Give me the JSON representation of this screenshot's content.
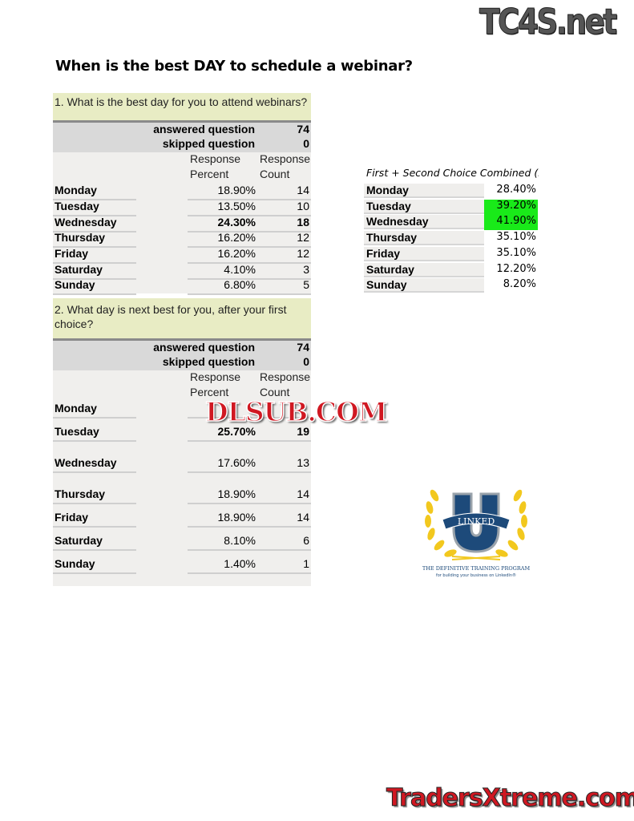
{
  "title": "When is the best DAY to schedule a webinar?",
  "watermarks": {
    "top": "TC4S.net",
    "middle": "DLSUB.COM",
    "bottom": "TradersXtreme.com"
  },
  "q1": {
    "question": "1. What is the best day for you to attend webinars?",
    "answered_label": "answered question",
    "answered": "74",
    "skipped_label": "skipped question",
    "skipped": "0",
    "col_percent": "Response Percent",
    "col_count": "Response Count",
    "rows": [
      {
        "day": "Monday",
        "percent": "18.90%",
        "count": "14"
      },
      {
        "day": "Tuesday",
        "percent": "13.50%",
        "count": "10"
      },
      {
        "day": "Wednesday",
        "percent": "24.30%",
        "count": "18"
      },
      {
        "day": "Thursday",
        "percent": "16.20%",
        "count": "12"
      },
      {
        "day": "Friday",
        "percent": "16.20%",
        "count": "12"
      },
      {
        "day": "Saturday",
        "percent": "4.10%",
        "count": "3"
      },
      {
        "day": "Sunday",
        "percent": "6.80%",
        "count": "5"
      }
    ]
  },
  "q2": {
    "question": "2. What day is next best for you, after your first choice?",
    "answered_label": "answered question",
    "answered": "74",
    "skipped_label": "skipped question",
    "skipped": "0",
    "col_percent": "Response Percent",
    "col_count": "Response Count",
    "rows": [
      {
        "day": "Monday",
        "percent": "",
        "count": ""
      },
      {
        "day": "Tuesday",
        "percent": "25.70%",
        "count": "19"
      },
      {
        "day": "Wednesday",
        "percent": "17.60%",
        "count": "13"
      },
      {
        "day": "Thursday",
        "percent": "18.90%",
        "count": "14"
      },
      {
        "day": "Friday",
        "percent": "18.90%",
        "count": "14"
      },
      {
        "day": "Saturday",
        "percent": "8.10%",
        "count": "6"
      },
      {
        "day": "Sunday",
        "percent": "1.40%",
        "count": "1"
      }
    ]
  },
  "combined": {
    "title": "First + Second Choice Combined (DAY)",
    "highlight_color": "#19ea19",
    "rows": [
      {
        "day": "Monday",
        "percent": "28.40%"
      },
      {
        "day": "Tuesday",
        "percent": "39.20%",
        "highlight": true
      },
      {
        "day": "Wednesday",
        "percent": "41.90%",
        "highlight": true
      },
      {
        "day": "Thursday",
        "percent": "35.10%"
      },
      {
        "day": "Friday",
        "percent": "35.10%"
      },
      {
        "day": "Saturday",
        "percent": "12.20%"
      },
      {
        "day": "Sunday",
        "percent": "8.20%"
      }
    ]
  },
  "logo": {
    "name": "LINKED",
    "tagline": "The Definitive Training Program",
    "subtagline": "for building your business on LinkedIn®"
  }
}
